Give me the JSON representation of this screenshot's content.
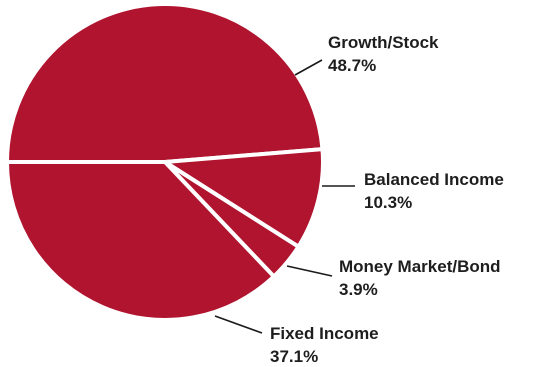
{
  "chart_data": {
    "type": "pie",
    "colors": {
      "slice": "#b0142f",
      "separator": "#ffffff",
      "text": "#1e1e1e"
    },
    "slices": [
      {
        "name": "Growth/Stock",
        "value": 48.7,
        "value_label": "48.7%"
      },
      {
        "name": "Balanced Income",
        "value": 10.3,
        "value_label": "10.3%"
      },
      {
        "name": "Money Market/Bond",
        "value": 3.9,
        "value_label": "3.9%"
      },
      {
        "name": "Fixed Income",
        "value": 37.1,
        "value_label": "37.1%"
      }
    ]
  }
}
